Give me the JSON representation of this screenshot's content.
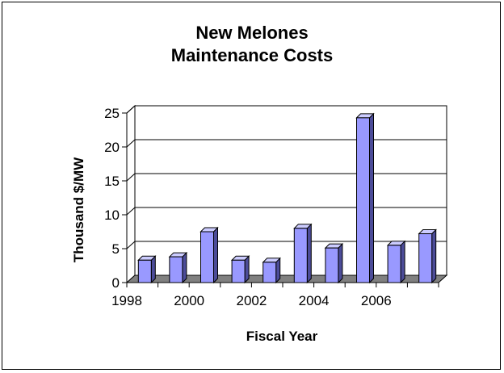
{
  "chart_data": {
    "type": "bar",
    "title_lines": [
      "New Melones",
      "Maintenance Costs"
    ],
    "xlabel": "Fiscal Year",
    "ylabel": "Thousand $/MW",
    "categories": [
      "1998",
      "1999",
      "2000",
      "2001",
      "2002",
      "2003",
      "2004",
      "2005",
      "2006",
      "2007"
    ],
    "x_tick_labels": [
      "1998",
      "2000",
      "2002",
      "2004",
      "2006"
    ],
    "values": [
      3.3,
      3.8,
      7.5,
      3.3,
      3.0,
      8.0,
      5.1,
      24.3,
      5.5,
      7.2
    ],
    "y_ticks": [
      "0",
      "5",
      "10",
      "15",
      "20",
      "25"
    ],
    "ylim": [
      0,
      25
    ],
    "grid": true,
    "legend": "none",
    "colors": {
      "bar_front": "#9999ff",
      "bar_top": "#ccccff",
      "bar_side": "#4c4c99",
      "floor": "#808080",
      "wall": "#ffffff",
      "stroke": "#000000"
    }
  }
}
